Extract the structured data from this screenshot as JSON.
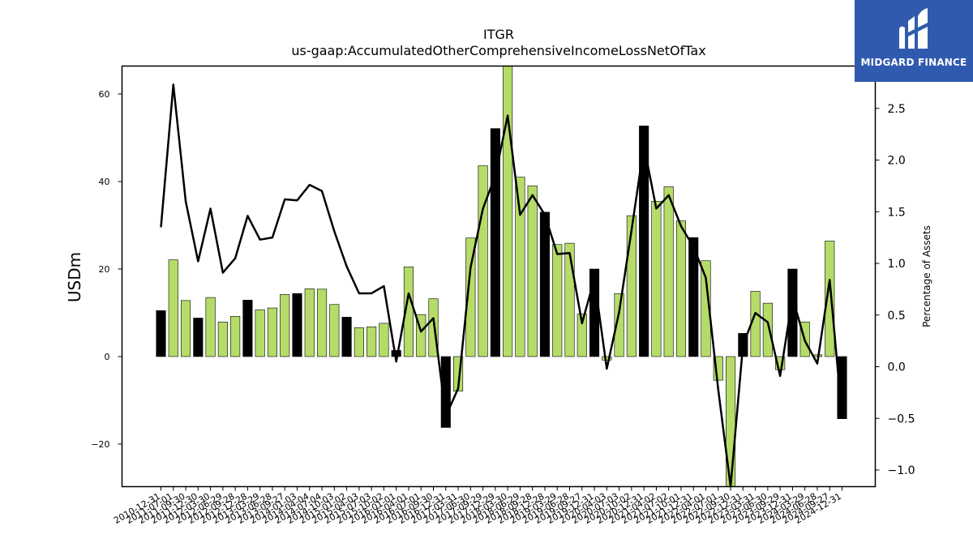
{
  "brand": {
    "name": "MIDGARD FINANCE",
    "color": "#2f5aae"
  },
  "chart_data": {
    "type": "bar",
    "title": "ITGR",
    "subtitle": "us-gaap:AccumulatedOtherComprehensiveIncomeLossNetOfTax",
    "ylabel": "USDm",
    "y2label": "Percentage of Assets",
    "ylim": [
      -30,
      66.5
    ],
    "y2lim": [
      -1.165,
      2.92
    ],
    "yticks": [
      -20,
      0,
      20,
      40,
      60
    ],
    "y2ticks": [
      -1.0,
      -0.5,
      0.0,
      0.5,
      1.0,
      1.5,
      2.0,
      2.5
    ],
    "colors": {
      "bar_default": "#b5dc68",
      "bar_highlight": "#000000",
      "line": "#000000"
    },
    "categories": [
      "2010-12-31",
      "2011-07-01",
      "2011-09-30",
      "2011-12-30",
      "2012-03-30",
      "2012-06-29",
      "2012-09-28",
      "2012-12-28",
      "2013-03-29",
      "2013-06-28",
      "2013-09-27",
      "2014-01-03",
      "2014-04-04",
      "2014-07-04",
      "2014-10-03",
      "2015-01-02",
      "2015-04-03",
      "2015-07-03",
      "2015-10-02",
      "2016-01-01",
      "2016-04-01",
      "2016-07-01",
      "2016-09-30",
      "2016-12-31",
      "2017-03-31",
      "2017-06-30",
      "2017-09-29",
      "2017-12-29",
      "2018-03-30",
      "2018-06-29",
      "2018-09-28",
      "2018-12-28",
      "2019-03-29",
      "2019-06-28",
      "2019-09-27",
      "2019-12-31",
      "2020-04-03",
      "2020-07-03",
      "2020-10-02",
      "2020-12-31",
      "2021-04-02",
      "2021-07-02",
      "2021-10-01",
      "2021-12-31",
      "2022-04-01",
      "2022-07-01",
      "2022-09-30",
      "2022-12-31",
      "2023-03-31",
      "2023-06-30",
      "2023-09-29",
      "2023-12-31",
      "2024-03-29",
      "2024-06-28",
      "2024-09-27",
      "2024-12-31"
    ],
    "series": [
      {
        "kind": "bar",
        "values": [
          10.5,
          22.1,
          12.8,
          8.8,
          13.5,
          7.9,
          9.2,
          12.9,
          10.7,
          11.1,
          14.2,
          14.4,
          15.5,
          15.4,
          11.9,
          9.0,
          6.6,
          6.8,
          7.6,
          1.4,
          20.5,
          9.6,
          13.2,
          -16.2,
          -7.9,
          27.1,
          43.6,
          52.1,
          68.0,
          41.0,
          39.0,
          33.0,
          25.6,
          25.9,
          9.7,
          20.0,
          -0.8,
          14.4,
          32.2,
          52.7,
          35.5,
          38.8,
          31.0,
          27.2,
          21.9,
          -5.4,
          -30.0,
          5.3,
          14.9,
          12.2,
          -3.0,
          20.0,
          7.9,
          0.4,
          26.4,
          -14.2
        ],
        "highlight": [
          true,
          false,
          false,
          true,
          false,
          false,
          false,
          true,
          false,
          false,
          false,
          true,
          false,
          false,
          false,
          true,
          false,
          false,
          false,
          true,
          false,
          false,
          false,
          true,
          false,
          false,
          false,
          true,
          false,
          false,
          false,
          true,
          false,
          false,
          false,
          true,
          false,
          false,
          false,
          true,
          false,
          false,
          false,
          true,
          false,
          false,
          false,
          true,
          false,
          false,
          false,
          true,
          false,
          false,
          false,
          true
        ]
      },
      {
        "kind": "line",
        "axis": "right",
        "values": [
          1.35,
          2.73,
          1.6,
          1.02,
          1.53,
          0.91,
          1.05,
          1.46,
          1.23,
          1.25,
          1.62,
          1.61,
          1.76,
          1.7,
          1.31,
          0.97,
          0.71,
          0.71,
          0.78,
          0.05,
          0.71,
          0.34,
          0.47,
          -0.48,
          -0.21,
          0.96,
          1.53,
          1.85,
          2.43,
          1.47,
          1.66,
          1.47,
          1.09,
          1.1,
          0.42,
          0.85,
          -0.02,
          0.53,
          1.32,
          2.14,
          1.53,
          1.66,
          1.36,
          1.16,
          0.86,
          -0.22,
          -1.16,
          0.21,
          0.52,
          0.43,
          -0.09,
          0.67,
          0.25,
          0.03,
          0.84,
          -0.49
        ]
      }
    ]
  }
}
